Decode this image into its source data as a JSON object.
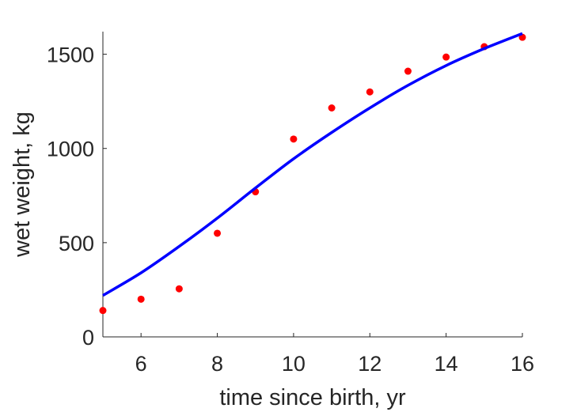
{
  "chart_data": {
    "type": "scatter",
    "xlabel": "time since birth, yr",
    "ylabel": "wet weight, kg",
    "xlim": [
      5,
      16
    ],
    "ylim": [
      0,
      1620
    ],
    "xticks": [
      6,
      8,
      10,
      12,
      14,
      16
    ],
    "yticks": [
      0,
      500,
      1000,
      1500
    ],
    "grid": false,
    "series": [
      {
        "kind": "points",
        "color": "#ff0000",
        "x": [
          5,
          6,
          7,
          8,
          9,
          10,
          11,
          12,
          13,
          14,
          15,
          16
        ],
        "y": [
          140,
          200,
          255,
          550,
          770,
          1050,
          1215,
          1300,
          1410,
          1485,
          1540,
          1590
        ]
      },
      {
        "kind": "line",
        "color": "#0000ff",
        "x": [
          5,
          6,
          7,
          8,
          9,
          10,
          11,
          12,
          13,
          14,
          15,
          16
        ],
        "y": [
          220,
          340,
          480,
          630,
          790,
          945,
          1085,
          1215,
          1335,
          1440,
          1530,
          1610
        ]
      }
    ]
  }
}
